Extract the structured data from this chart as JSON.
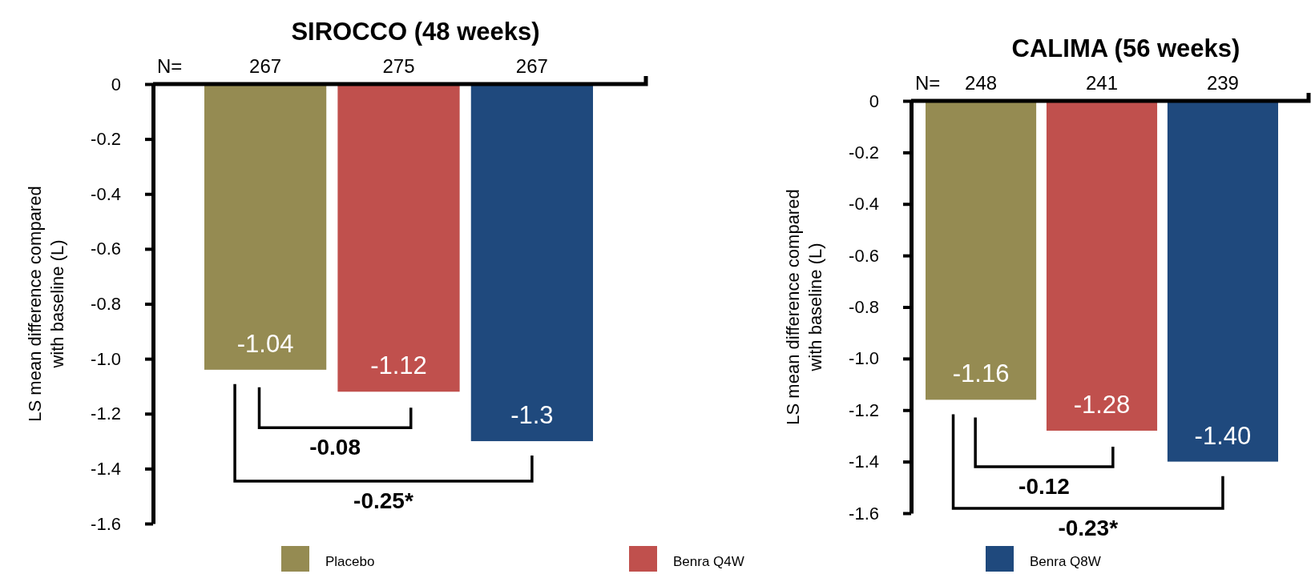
{
  "chart_data": [
    {
      "type": "bar",
      "title": "SIROCCO (48 weeks)",
      "ylabel": "LS mean difference compared with baseline (L)",
      "categories": [
        "267",
        "275",
        "267"
      ],
      "series": [
        {
          "name": "Placebo",
          "color": "#958b52",
          "values": [
            -1.04,
            null,
            null
          ],
          "value_labels": [
            "-1.04",
            null,
            null
          ]
        },
        {
          "name": "Benra Q4W",
          "color": "#c0504d",
          "values": [
            null,
            -1.12,
            null
          ],
          "value_labels": [
            null,
            "-1.12",
            null
          ]
        },
        {
          "name": "Benra Q8W",
          "color": "#1f497d",
          "values": [
            null,
            null,
            -1.3
          ],
          "value_labels": [
            null,
            null,
            "-1.3"
          ]
        }
      ],
      "ylim": [
        -1.6,
        0
      ],
      "yticks": [
        0,
        -0.2,
        -0.4,
        -0.6,
        -0.8,
        {
          "value": -1,
          "label": "-1.0"
        },
        -1.2,
        -1.4,
        -1.6
      ],
      "annotations": [
        "N=",
        "-0.08",
        "-0.25*"
      ],
      "legend": "bottom"
    },
    {
      "type": "bar",
      "title": "CALIMA (56 weeks)",
      "ylabel": "LS mean difference compared with baseline (L)",
      "categories": [
        "248",
        "241",
        "239"
      ],
      "series": [
        {
          "color": "#958b52",
          "values": [
            -1.16,
            null,
            null
          ],
          "value_labels": [
            "-1.16",
            null,
            null
          ]
        },
        {
          "color": "#c0504d",
          "values": [
            null,
            -1.28,
            null
          ],
          "value_labels": [
            null,
            "-1.28",
            null
          ]
        },
        {
          "color": "#1f497d",
          "values": [
            null,
            null,
            -1.4
          ],
          "value_labels": [
            null,
            null,
            "-1.40"
          ]
        }
      ],
      "ylim": [
        -1.6,
        0
      ],
      "yticks": [
        0,
        -0.2,
        -0.4,
        -0.6,
        -0.8,
        {
          "value": -1,
          "label": "-1.0"
        },
        -1.2,
        -1.4,
        -1.6
      ],
      "annotations": [
        "N=",
        "-0.12",
        "-0.23*"
      ]
    }
  ]
}
